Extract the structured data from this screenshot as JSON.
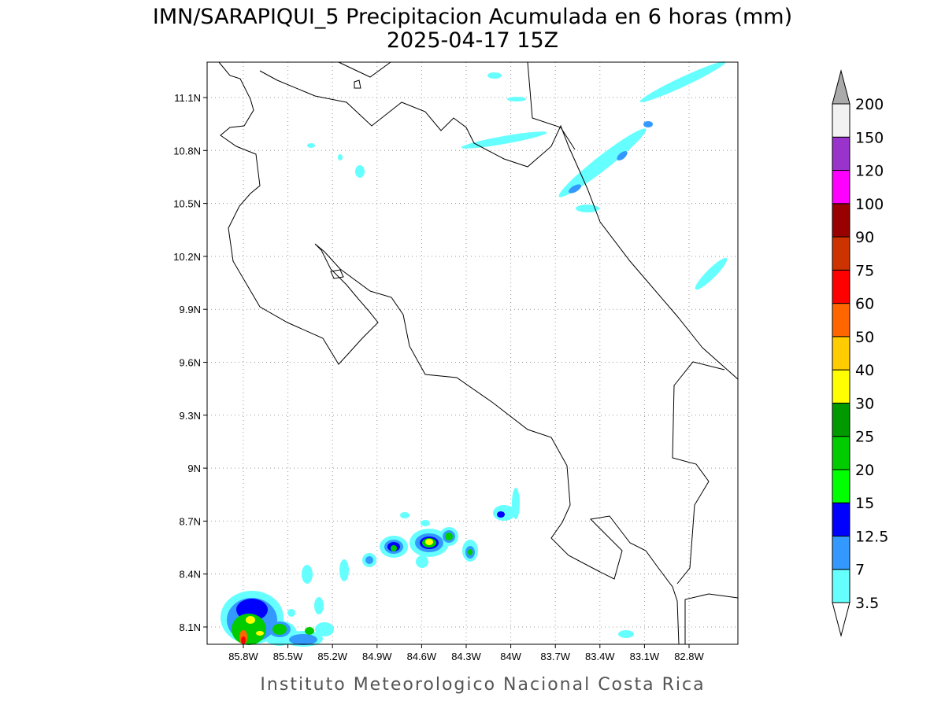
{
  "title": "IMN/SARAPIQUI_5 Precipitacion Acumulada en 6 horas (mm)",
  "subtitle": "2025-04-17 15Z",
  "map": {
    "lon_ticks": [
      "85.8W",
      "85.5W",
      "85.2W",
      "84.9W",
      "84.6W",
      "84.3W",
      "84W",
      "83.7W",
      "83.4W",
      "83.1W",
      "82.8W"
    ],
    "lat_ticks": [
      "11.1N",
      "10.8N",
      "10.5N",
      "10.2N",
      "9.9N",
      "9.6N",
      "9.3N",
      "9N",
      "8.7N",
      "8.4N",
      "8.1N"
    ]
  },
  "colorbar": {
    "levels": [
      3.5,
      7,
      12.5,
      15,
      20,
      25,
      30,
      40,
      50,
      60,
      75,
      90,
      100,
      120,
      150,
      200
    ],
    "colors": [
      "#66ffff",
      "#3399ff",
      "#0000ff",
      "#00ff00",
      "#00cc00",
      "#009900",
      "#ffff00",
      "#ffcc00",
      "#ff6600",
      "#ff0000",
      "#cc3300",
      "#990000",
      "#ff00ff",
      "#9933cc",
      "#f2f2f2"
    ],
    "under_color": "#ffffff",
    "over_color": "#aaaaaa"
  },
  "footer": "Instituto Meteorologico Nacional Costa Rica"
}
